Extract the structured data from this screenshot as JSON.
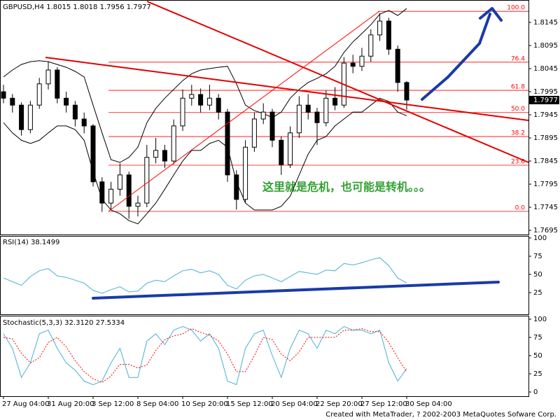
{
  "chart_data": [
    {
      "type": "candlestick",
      "title": "GBPUSD,H4 1.8015 1.8018 1.7956 1.7977",
      "categories": [
        "27 Aug 04:00",
        null,
        null,
        null,
        null,
        "31 Aug 20:00",
        null,
        null,
        null,
        null,
        "3 Sep 12:00",
        null,
        null,
        null,
        null,
        "8 Sep 04:00",
        null,
        null,
        null,
        null,
        "10 Sep 20:00",
        null,
        null,
        null,
        null,
        "15 Sep 12:00",
        null,
        null,
        null,
        null,
        "20 Sep 04:00",
        null,
        null,
        null,
        null,
        "22 Sep 20:00",
        null,
        null,
        null,
        null,
        "27 Sep 12:00",
        null,
        null,
        null,
        null,
        "30 Sep 04:00"
      ],
      "open": [
        1.7995,
        1.7981,
        1.7966,
        1.7913,
        1.7966,
        1.8012,
        1.8042,
        1.7981,
        1.7966,
        1.7936,
        1.7921,
        1.78,
        1.7754,
        1.7784,
        1.7815,
        1.7747,
        1.7754,
        1.7853,
        1.7868,
        1.7845,
        1.7921,
        1.7981,
        1.7989,
        1.7966,
        1.7981,
        1.7951,
        1.7815,
        1.7762,
        1.7875,
        1.7936,
        1.7951,
        1.789,
        1.7837,
        1.7906,
        1.7966,
        1.7951,
        1.7928,
        1.7981,
        1.7966,
        1.8057,
        1.805,
        1.8072,
        1.8118,
        1.8148,
        1.8087,
        1.8015
      ],
      "high": [
        1.801,
        1.799,
        1.7972,
        1.7975,
        1.8025,
        1.806,
        1.8048,
        1.7995,
        1.7975,
        1.795,
        1.7925,
        1.781,
        1.78,
        1.784,
        1.7822,
        1.777,
        1.788,
        1.7895,
        1.788,
        1.7935,
        1.8,
        1.801,
        1.8002,
        1.801,
        1.799,
        1.7958,
        1.7825,
        1.789,
        1.795,
        1.797,
        1.7958,
        1.7898,
        1.792,
        1.7985,
        1.799,
        1.796,
        1.7998,
        1.8005,
        1.807,
        1.8075,
        1.809,
        1.813,
        1.8165,
        1.8155,
        1.8095,
        1.8018
      ],
      "low": [
        1.797,
        1.795,
        1.79,
        1.7905,
        1.7958,
        1.8,
        1.797,
        1.795,
        1.792,
        1.7905,
        1.779,
        1.7735,
        1.774,
        1.777,
        1.772,
        1.7725,
        1.7745,
        1.784,
        1.783,
        1.7838,
        1.791,
        1.7965,
        1.795,
        1.7955,
        1.7935,
        1.78,
        1.774,
        1.7755,
        1.7865,
        1.7925,
        1.7875,
        1.7815,
        1.783,
        1.7895,
        1.7935,
        1.788,
        1.792,
        1.7955,
        1.796,
        1.8035,
        1.804,
        1.806,
        1.8105,
        1.8075,
        1.7995,
        1.7956
      ],
      "close": [
        1.7981,
        1.7966,
        1.7913,
        1.7966,
        1.8012,
        1.8042,
        1.7981,
        1.7966,
        1.7936,
        1.7921,
        1.78,
        1.7754,
        1.7784,
        1.7815,
        1.7747,
        1.7754,
        1.7853,
        1.7868,
        1.7845,
        1.7921,
        1.7981,
        1.7989,
        1.7966,
        1.7981,
        1.7951,
        1.7815,
        1.7762,
        1.7875,
        1.7936,
        1.7951,
        1.789,
        1.7837,
        1.7906,
        1.7966,
        1.7951,
        1.7928,
        1.7981,
        1.7966,
        1.8057,
        1.805,
        1.8072,
        1.8118,
        1.8148,
        1.8087,
        1.8015,
        1.7977
      ],
      "upper_band": [
        1.8027,
        1.8042,
        1.8054,
        1.806,
        1.8062,
        1.806,
        1.8054,
        1.8048,
        1.8039,
        1.8027,
        1.7966,
        1.7906,
        1.7848,
        1.7842,
        1.7853,
        1.7875,
        1.7928,
        1.7959,
        1.7981,
        1.8,
        1.8019,
        1.8034,
        1.8042,
        1.8045,
        1.8048,
        1.805,
        1.8012,
        1.7966,
        1.7954,
        1.7948,
        1.7939,
        1.7951,
        1.7981,
        1.8,
        1.8015,
        1.8024,
        1.8034,
        1.805,
        1.808,
        1.8103,
        1.8121,
        1.814,
        1.8163,
        1.8171,
        1.816,
        1.8175
      ],
      "lower_band": [
        1.7928,
        1.7906,
        1.789,
        1.7883,
        1.789,
        1.7906,
        1.7921,
        1.7921,
        1.7913,
        1.789,
        1.7822,
        1.7762,
        1.7739,
        1.7731,
        1.7716,
        1.7709,
        1.7731,
        1.7754,
        1.7784,
        1.7815,
        1.7845,
        1.7868,
        1.7868,
        1.7883,
        1.789,
        1.7875,
        1.78,
        1.7754,
        1.7739,
        1.7739,
        1.7739,
        1.7747,
        1.7769,
        1.7815,
        1.786,
        1.789,
        1.7898,
        1.7921,
        1.7936,
        1.7951,
        1.7951,
        1.7966,
        1.7981,
        1.7974,
        1.7951,
        1.7943
      ],
      "band_color": "#000000",
      "up_color": "#ffffff",
      "down_color": "#000000",
      "fib_levels": [
        {
          "label": "100.0",
          "price": 1.8169
        },
        {
          "label": "76.4",
          "price": 1.8059
        },
        {
          "label": "61.8",
          "price": 1.7998
        },
        {
          "label": "50.0",
          "price": 1.795
        },
        {
          "label": "38.2",
          "price": 1.7898
        },
        {
          "label": "23.6",
          "price": 1.7836
        },
        {
          "label": "0.0",
          "price": 1.7736
        }
      ],
      "fib_color": "#ff0000",
      "annotation": "这里就是危机，也可能是转机。。。",
      "ylim": [
        1.7686,
        1.8189
      ],
      "yticks": [
        1.8145,
        1.8095,
        1.8045,
        1.7995,
        1.7945,
        1.7895,
        1.7845,
        1.7795,
        1.7745,
        1.7695
      ]
    },
    {
      "type": "line",
      "title": "RSI(14) 38.1499",
      "series": [
        {
          "color": "#4ab0d0",
          "values": [
            45,
            40,
            35,
            47,
            55,
            58,
            48,
            46,
            42,
            38,
            28,
            24,
            29,
            33,
            26,
            27,
            38,
            42,
            40,
            48,
            55,
            57,
            52,
            55,
            50,
            35,
            30,
            42,
            48,
            50,
            45,
            40,
            47,
            54,
            52,
            50,
            56,
            55,
            65,
            63,
            66,
            70,
            73,
            62,
            45,
            38.1499
          ]
        }
      ],
      "ylim": [
        0,
        100
      ],
      "yticks": [
        100,
        75,
        50,
        25
      ]
    },
    {
      "type": "line",
      "title": "Stochastic(5,3,3) 32.3120 27.5334",
      "series": [
        {
          "color": "#4ab0d0",
          "values": [
            80,
            60,
            20,
            40,
            80,
            85,
            60,
            40,
            30,
            15,
            10,
            15,
            40,
            60,
            20,
            20,
            70,
            80,
            65,
            85,
            90,
            85,
            70,
            80,
            60,
            15,
            10,
            60,
            80,
            85,
            50,
            20,
            60,
            85,
            80,
            60,
            85,
            80,
            90,
            85,
            85,
            80,
            85,
            40,
            15,
            32.312
          ]
        },
        {
          "color": "#ff0000",
          "style": "dotted",
          "values": [
            75,
            73,
            53,
            40,
            47,
            68,
            75,
            62,
            43,
            28,
            18,
            13,
            22,
            38,
            38,
            33,
            37,
            57,
            72,
            77,
            80,
            87,
            82,
            78,
            70,
            52,
            28,
            28,
            50,
            75,
            72,
            52,
            43,
            55,
            75,
            75,
            75,
            75,
            85,
            85,
            87,
            83,
            83,
            68,
            47,
            27.5334
          ]
        }
      ],
      "ylim": [
        0,
        100
      ],
      "yticks": [
        100,
        75,
        50,
        25,
        0
      ]
    }
  ],
  "footer": "Created with MetaTrader, ? 2002-2003 MetaQuotes Sofware Corp."
}
